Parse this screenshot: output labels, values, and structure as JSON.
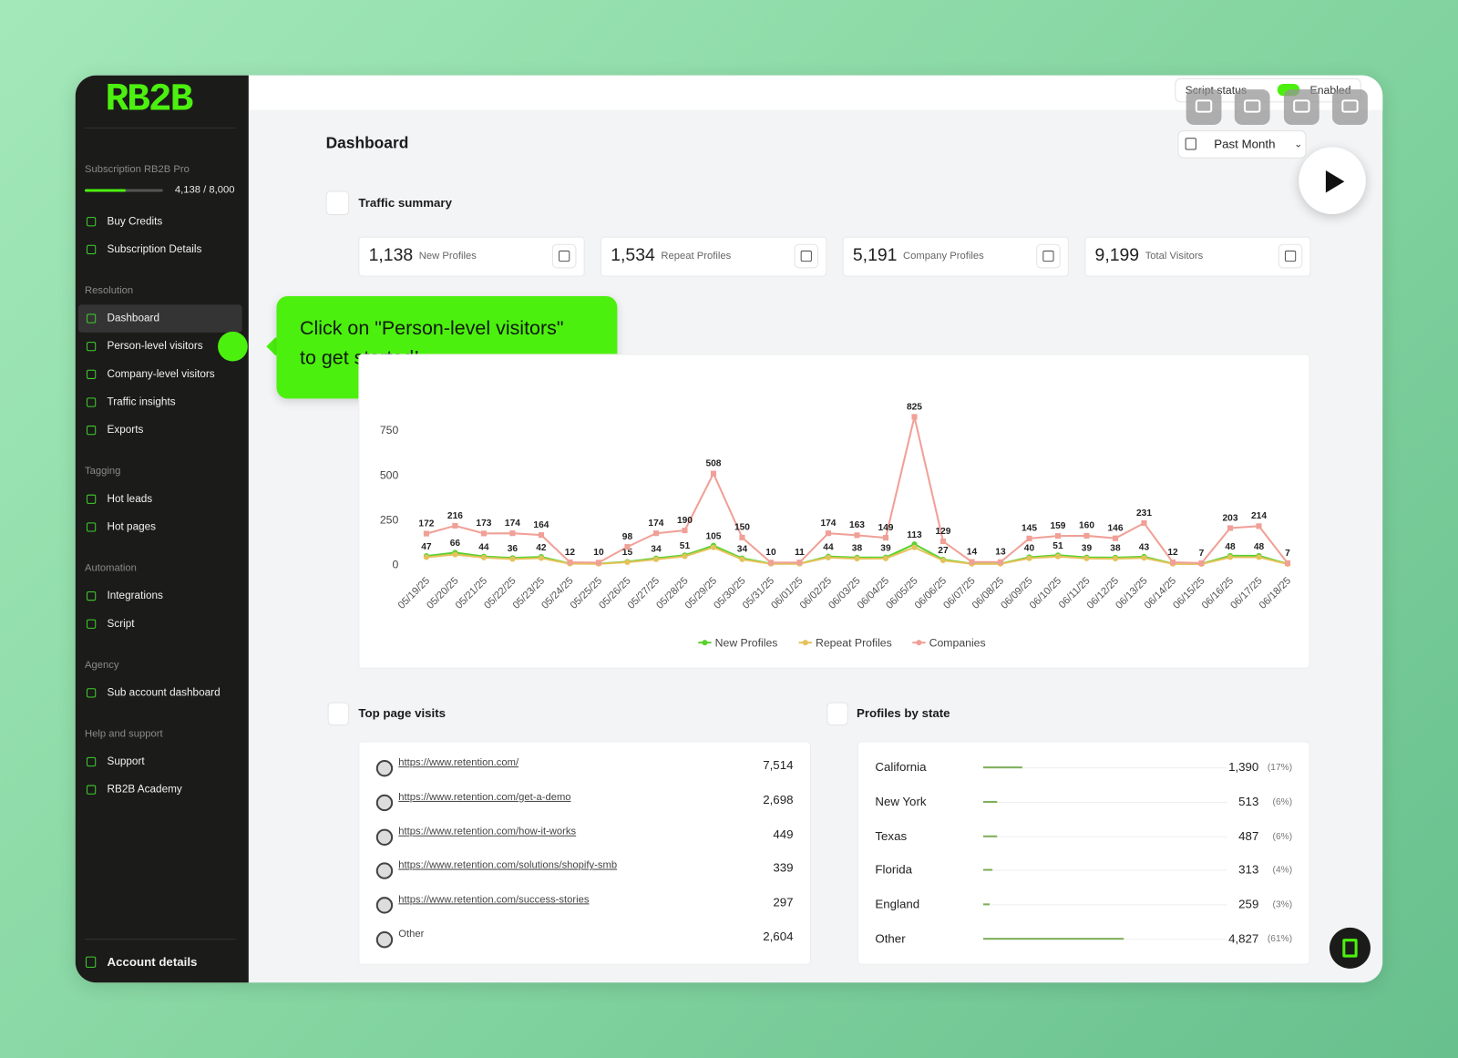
{
  "sidebar": {
    "logo": "RB2B",
    "subscription": "Subscription RB2B Pro",
    "credits": "4,138 / 8,000",
    "groups": [
      {
        "items": [
          "Buy Credits",
          "Subscription Details"
        ]
      },
      {
        "heading": "Resolution",
        "items": [
          "Dashboard",
          "Person-level visitors",
          "Company-level visitors",
          "Traffic insights",
          "Exports"
        ]
      },
      {
        "heading": "Tagging",
        "items": [
          "Hot leads",
          "Hot pages"
        ]
      },
      {
        "heading": "Automation",
        "items": [
          "Integrations",
          "Script"
        ]
      },
      {
        "heading": "Agency",
        "items": [
          "Sub account dashboard"
        ]
      },
      {
        "heading": "Help and support",
        "items": [
          "Support",
          "RB2B Academy"
        ]
      }
    ],
    "account": "Account details"
  },
  "header": {
    "script_status": "Script status",
    "enabled": "Enabled",
    "title": "Dashboard",
    "range": "Past Month"
  },
  "traffic_summary": {
    "title": "Traffic summary",
    "kpis": [
      {
        "value": "1,138",
        "label": "New Profiles"
      },
      {
        "value": "1,534",
        "label": "Repeat Profiles"
      },
      {
        "value": "5,191",
        "label": "Company Profiles"
      },
      {
        "value": "9,199",
        "label": "Total Visitors"
      }
    ]
  },
  "tooltip": {
    "lines": [
      "Click on \"Person-level visitors\"",
      "to get started!"
    ]
  },
  "chart_data": {
    "type": "line",
    "categories": [
      "05/19/25",
      "05/20/25",
      "05/21/25",
      "05/22/25",
      "05/23/25",
      "05/24/25",
      "05/25/25",
      "05/26/25",
      "05/27/25",
      "05/28/25",
      "05/29/25",
      "05/30/25",
      "05/31/25",
      "06/01/25",
      "06/02/25",
      "06/03/25",
      "06/04/25",
      "06/05/25",
      "06/06/25",
      "06/07/25",
      "06/08/25",
      "06/09/25",
      "06/10/25",
      "06/11/25",
      "06/12/25",
      "06/13/25",
      "06/14/25",
      "06/15/25",
      "06/16/25",
      "06/17/25",
      "06/18/25"
    ],
    "series": [
      {
        "name": "New Profiles",
        "color": "#5ad12e",
        "values": [
          47,
          66,
          44,
          36,
          42,
          5,
          4,
          15,
          34,
          51,
          105,
          34,
          4,
          4,
          44,
          38,
          39,
          113,
          27,
          4,
          4,
          40,
          51,
          39,
          38,
          43,
          4,
          3,
          48,
          48,
          3
        ],
        "value_labels": [
          "47",
          "66",
          "44",
          "36",
          "42",
          null,
          null,
          "15",
          "34",
          "51",
          "105",
          "34",
          null,
          null,
          "44",
          "38",
          "39",
          "113",
          "27",
          null,
          null,
          "40",
          "51",
          "39",
          "38",
          "43",
          null,
          null,
          "48",
          "48",
          null
        ]
      },
      {
        "name": "Repeat Profiles",
        "color": "#e6c25c",
        "values": [
          40,
          55,
          38,
          30,
          35,
          4,
          3,
          12,
          28,
          45,
          95,
          28,
          3,
          4,
          38,
          32,
          33,
          95,
          22,
          3,
          3,
          34,
          44,
          33,
          32,
          36,
          3,
          2,
          40,
          40,
          2
        ]
      },
      {
        "name": "Companies",
        "color": "#f0a097",
        "data_labels": true,
        "values": [
          172,
          216,
          173,
          174,
          164,
          12,
          10,
          98,
          174,
          190,
          508,
          150,
          10,
          11,
          174,
          163,
          149,
          825,
          129,
          14,
          13,
          145,
          159,
          160,
          146,
          231,
          12,
          7,
          203,
          214,
          7
        ]
      }
    ],
    "ylim": [
      0,
      1000
    ],
    "yticks": [
      0,
      250,
      500,
      750
    ],
    "grid": false,
    "legend": "bottom"
  },
  "top_pages": {
    "title": "Top page visits",
    "rows": [
      {
        "url": "https://www.retention.com/",
        "visits": "7,514"
      },
      {
        "url": "https://www.retention.com/get-a-demo",
        "visits": "2,698"
      },
      {
        "url": "https://www.retention.com/how-it-works",
        "visits": "449"
      },
      {
        "url": "https://www.retention.com/solutions/shopify-smb",
        "visits": "339"
      },
      {
        "url": "https://www.retention.com/success-stories",
        "visits": "297"
      },
      {
        "url": "Other",
        "visits": "2,604"
      }
    ]
  },
  "states": {
    "title": "Profiles by state",
    "rows": [
      {
        "name": "California",
        "value": "1,390",
        "share": 17,
        "share_label": "(17%)"
      },
      {
        "name": "New York",
        "value": "513",
        "share": 6,
        "share_label": "(6%)"
      },
      {
        "name": "Texas",
        "value": "487",
        "share": 6,
        "share_label": "(6%)"
      },
      {
        "name": "Florida",
        "value": "313",
        "share": 4,
        "share_label": "(4%)"
      },
      {
        "name": "England",
        "value": "259",
        "share": 3,
        "share_label": "(3%)"
      },
      {
        "name": "Other",
        "value": "4,827",
        "share": 61,
        "share_label": "(61%)"
      }
    ]
  }
}
